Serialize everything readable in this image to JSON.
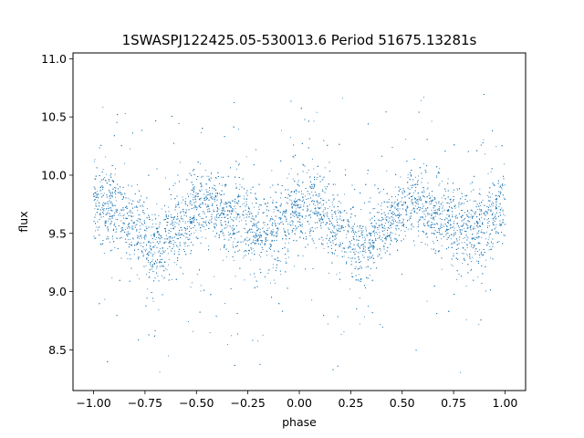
{
  "chart_data": {
    "type": "scatter",
    "title": "1SWASPJ122425.05-530013.6 Period 51675.13281s",
    "xlabel": "phase",
    "ylabel": "flux",
    "xlim": [
      -1.1,
      1.1
    ],
    "ylim": [
      8.15,
      11.05
    ],
    "xticks": [
      -1.0,
      -0.75,
      -0.5,
      -0.25,
      0.0,
      0.25,
      0.5,
      0.75,
      1.0
    ],
    "xtick_labels": [
      "−1.00",
      "−0.75",
      "−0.50",
      "−0.25",
      "0.00",
      "0.25",
      "0.50",
      "0.75",
      "1.00"
    ],
    "yticks": [
      8.5,
      9.0,
      9.5,
      10.0,
      10.5,
      11.0
    ],
    "ytick_labels": [
      "8.5",
      "9.0",
      "9.5",
      "10.0",
      "10.5",
      "11.0"
    ],
    "grid": false,
    "marker_color": "#1f77b4",
    "profile": {
      "description_points": [
        {
          "phase": -1.0,
          "flux": 9.72
        },
        {
          "phase": -0.9,
          "flux": 9.72
        },
        {
          "phase": -0.8,
          "flux": 9.55
        },
        {
          "phase": -0.7,
          "flux": 9.38
        },
        {
          "phase": -0.6,
          "flux": 9.55
        },
        {
          "phase": -0.45,
          "flux": 9.75
        },
        {
          "phase": -0.3,
          "flux": 9.65
        },
        {
          "phase": -0.2,
          "flux": 9.5
        },
        {
          "phase": -0.1,
          "flux": 9.58
        },
        {
          "phase": 0.0,
          "flux": 9.72
        },
        {
          "phase": 0.1,
          "flux": 9.72
        },
        {
          "phase": 0.2,
          "flux": 9.55
        },
        {
          "phase": 0.3,
          "flux": 9.38
        },
        {
          "phase": 0.4,
          "flux": 9.55
        },
        {
          "phase": 0.55,
          "flux": 9.75
        },
        {
          "phase": 0.7,
          "flux": 9.65
        },
        {
          "phase": 0.8,
          "flux": 9.5
        },
        {
          "phase": 0.9,
          "flux": 9.58
        },
        {
          "phase": 1.0,
          "flux": 9.72
        }
      ],
      "scatter_sigma": 0.17,
      "outlier_range": [
        8.3,
        10.7
      ]
    }
  }
}
